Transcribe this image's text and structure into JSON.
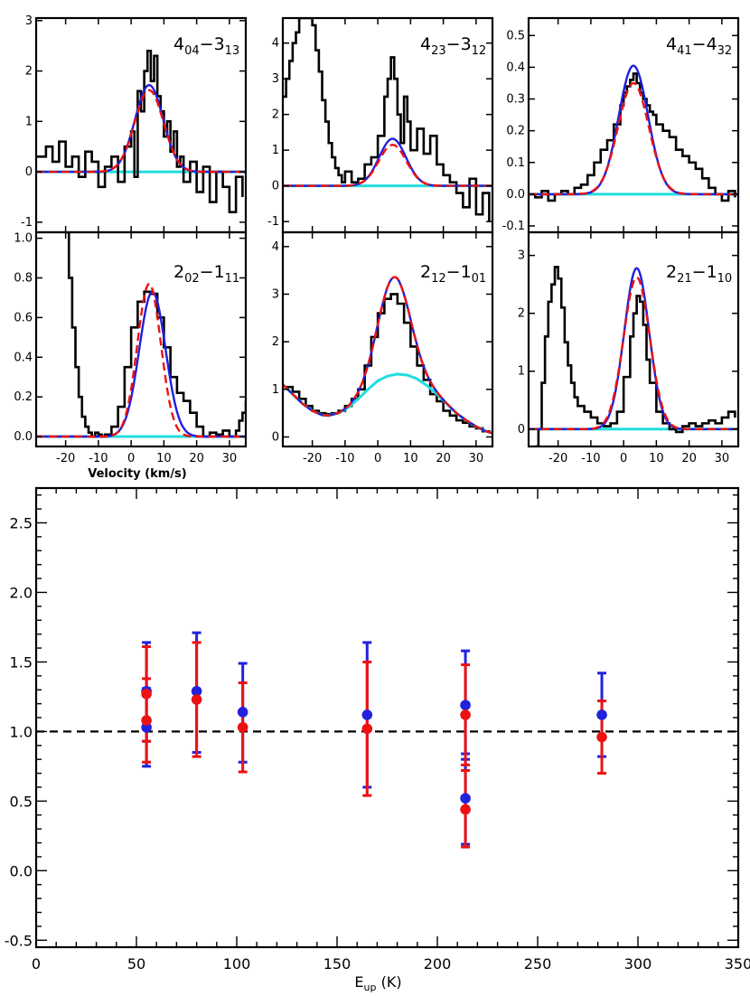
{
  "chart_data": [
    {
      "type": "line",
      "title": {
        "main_a": "4",
        "sub_a": "04",
        "dash": "−",
        "main_b": "3",
        "sub_b": "13"
      },
      "xlim": [
        -29,
        35
      ],
      "ylim": [
        -1.2,
        3.05
      ],
      "yticks": [
        "-1",
        "0",
        "1",
        "2",
        "3"
      ],
      "ytick_values": [
        -1,
        0,
        1,
        2,
        3
      ],
      "xticks": [],
      "xtick_values": [],
      "xlabel": "",
      "baseline": 0,
      "series": [
        {
          "kind": "observed",
          "color": "#000000",
          "x": [
            -29,
            -26,
            -24,
            -22,
            -20,
            -18,
            -16,
            -14,
            -12,
            -10,
            -8,
            -6,
            -4,
            -2,
            0,
            1,
            2,
            3,
            4,
            5,
            6,
            7,
            8,
            9,
            10,
            11,
            12,
            13,
            14,
            15,
            16,
            18,
            20,
            22,
            24,
            26,
            28,
            30,
            32,
            34
          ],
          "y": [
            0.3,
            0.5,
            0.2,
            0.6,
            0.1,
            0.3,
            -0.1,
            0.4,
            0.2,
            -0.3,
            0.1,
            0.3,
            -0.2,
            0.5,
            0.8,
            -0.1,
            1.6,
            1.2,
            2.0,
            2.4,
            1.8,
            2.3,
            1.5,
            1.2,
            0.7,
            1.0,
            0.4,
            0.8,
            0.1,
            0.3,
            -0.2,
            0.2,
            -0.4,
            0.1,
            -0.6,
            0.0,
            -0.3,
            -0.8,
            -0.1,
            -0.5
          ]
        },
        {
          "kind": "fit-blue",
          "color": "#1f1fdf",
          "center": 5.5,
          "amp": 1.72,
          "sigma": 4.3
        },
        {
          "kind": "fit-red",
          "color": "#ee1111",
          "center": 5.5,
          "amp": 1.62,
          "sigma": 4.4
        }
      ]
    },
    {
      "type": "line",
      "title": {
        "main_a": "4",
        "sub_a": "23",
        "dash": "−",
        "main_b": "3",
        "sub_b": "12"
      },
      "xlim": [
        -29,
        35
      ],
      "ylim": [
        -1.3,
        4.7
      ],
      "yticks": [
        "-1",
        "0",
        "1",
        "2",
        "3",
        "4"
      ],
      "ytick_values": [
        -1,
        0,
        1,
        2,
        3,
        4
      ],
      "xticks": [],
      "xtick_values": [],
      "xlabel": "",
      "baseline": 0,
      "series": [
        {
          "kind": "observed",
          "color": "#000000",
          "x": [
            -29,
            -28,
            -27,
            -26,
            -25,
            -24,
            -23,
            -22,
            -21,
            -20,
            -19,
            -18,
            -17,
            -16,
            -15,
            -14,
            -13,
            -12,
            -11,
            -10,
            -8,
            -6,
            -4,
            -2,
            0,
            2,
            3,
            4,
            5,
            6,
            7,
            8,
            9,
            10,
            12,
            14,
            16,
            18,
            20,
            22,
            24,
            26,
            28,
            30,
            32,
            34
          ],
          "y": [
            2.5,
            3.0,
            3.5,
            4.0,
            4.3,
            4.7,
            4.7,
            4.7,
            4.7,
            4.5,
            3.8,
            3.2,
            2.4,
            1.8,
            1.2,
            0.8,
            0.5,
            0.3,
            0.1,
            0.4,
            0.1,
            0.2,
            0.6,
            0.8,
            1.4,
            2.5,
            3.0,
            3.6,
            3.0,
            2.0,
            1.2,
            2.5,
            1.8,
            1.0,
            1.6,
            0.9,
            1.4,
            0.6,
            0.3,
            0.1,
            -0.2,
            -0.6,
            0.2,
            -0.8,
            -0.2,
            -1.0
          ]
        },
        {
          "kind": "fit-blue",
          "color": "#1f1fdf",
          "center": 4.5,
          "amp": 1.32,
          "sigma": 4.1
        },
        {
          "kind": "fit-red",
          "color": "#ee1111",
          "center": 4.5,
          "amp": 1.15,
          "sigma": 4.2
        }
      ]
    },
    {
      "type": "line",
      "title": {
        "main_a": "4",
        "sub_a": "41",
        "dash": "−",
        "main_b": "4",
        "sub_b": "32"
      },
      "xlim": [
        -29,
        35
      ],
      "ylim": [
        -0.12,
        0.555
      ],
      "yticks": [
        "-0.1",
        "0.0",
        "0.1",
        "0.2",
        "0.3",
        "0.4",
        "0.5"
      ],
      "ytick_values": [
        -0.1,
        0,
        0.1,
        0.2,
        0.3,
        0.4,
        0.5
      ],
      "xticks": [],
      "xtick_values": [],
      "xlabel": "",
      "baseline": 0,
      "series": [
        {
          "kind": "observed",
          "color": "#000000",
          "x": [
            -29,
            -27,
            -25,
            -23,
            -21,
            -19,
            -17,
            -15,
            -13,
            -11,
            -9,
            -7,
            -5,
            -3,
            -1,
            0,
            1,
            2,
            3,
            4,
            5,
            6,
            7,
            8,
            9,
            10,
            12,
            14,
            16,
            18,
            20,
            22,
            24,
            26,
            28,
            30,
            32,
            34
          ],
          "y": [
            0.0,
            -0.01,
            0.01,
            -0.02,
            0.0,
            0.01,
            0.0,
            0.02,
            0.03,
            0.06,
            0.1,
            0.14,
            0.17,
            0.22,
            0.28,
            0.32,
            0.34,
            0.36,
            0.38,
            0.35,
            0.32,
            0.3,
            0.28,
            0.26,
            0.25,
            0.22,
            0.2,
            0.18,
            0.14,
            0.12,
            0.1,
            0.08,
            0.05,
            0.02,
            0.0,
            -0.02,
            0.01,
            -0.01
          ]
        },
        {
          "kind": "fit-blue",
          "color": "#1f1fdf",
          "center": 3.0,
          "amp": 0.405,
          "sigma": 4.5
        },
        {
          "kind": "fit-red",
          "color": "#ee1111",
          "center": 3.0,
          "amp": 0.35,
          "sigma": 4.7
        }
      ]
    },
    {
      "type": "line",
      "title": {
        "main_a": "2",
        "sub_a": "02",
        "dash": "−",
        "main_b": "1",
        "sub_b": "11"
      },
      "xlim": [
        -29,
        35
      ],
      "ylim": [
        -0.05,
        1.03
      ],
      "yticks": [
        "0.0",
        "0.2",
        "0.4",
        "0.6",
        "0.8",
        "1.0"
      ],
      "ytick_values": [
        0,
        0.2,
        0.4,
        0.6,
        0.8,
        1.0
      ],
      "xticks": [
        "-20",
        "-10",
        "0",
        "10",
        "20",
        "30"
      ],
      "xtick_values": [
        -20,
        -10,
        0,
        10,
        20,
        30
      ],
      "xlabel": "Velocity (km/s)",
      "baseline": 0,
      "series": [
        {
          "kind": "observed",
          "color": "#000000",
          "x": [
            -20,
            -19,
            -18,
            -17,
            -16,
            -15,
            -14,
            -13,
            -12,
            -11,
            -10,
            -9,
            -8,
            -6,
            -4,
            -2,
            0,
            2,
            4,
            6,
            8,
            10,
            12,
            14,
            16,
            18,
            20,
            22,
            24,
            26,
            28,
            30,
            32,
            33,
            34,
            35
          ],
          "y": [
            1.03,
            0.8,
            0.55,
            0.35,
            0.2,
            0.1,
            0.05,
            0.02,
            0.0,
            0.02,
            0.01,
            0.0,
            0.01,
            0.05,
            0.15,
            0.35,
            0.55,
            0.68,
            0.73,
            0.72,
            0.6,
            0.45,
            0.3,
            0.22,
            0.18,
            0.12,
            0.05,
            0.0,
            0.02,
            0.01,
            0.03,
            0.0,
            0.03,
            0.08,
            0.12,
            0.18
          ]
        },
        {
          "kind": "fit-blue",
          "color": "#1f1fdf",
          "center": 6.5,
          "amp": 0.73,
          "sigma": 4.0
        },
        {
          "kind": "fit-red",
          "color": "#ee1111",
          "center": 5.5,
          "amp": 0.77,
          "sigma": 3.6
        }
      ]
    },
    {
      "type": "line",
      "title": {
        "main_a": "2",
        "sub_a": "12",
        "dash": "−",
        "main_b": "1",
        "sub_b": "01"
      },
      "xlim": [
        -29,
        35
      ],
      "ylim": [
        -0.2,
        4.3
      ],
      "yticks": [
        "0",
        "1",
        "2",
        "3",
        "4"
      ],
      "ytick_values": [
        0,
        1,
        2,
        3,
        4
      ],
      "xticks": [
        "-20",
        "-10",
        "0",
        "10",
        "20",
        "30"
      ],
      "xtick_values": [
        -20,
        -10,
        0,
        10,
        20,
        30
      ],
      "xlabel": "",
      "baseline": 0,
      "series": [
        {
          "kind": "observed",
          "color": "#000000",
          "x": [
            -28,
            -26,
            -24,
            -22,
            -20,
            -18,
            -16,
            -14,
            -12,
            -10,
            -8,
            -6,
            -4,
            -2,
            0,
            2,
            4,
            6,
            8,
            10,
            12,
            14,
            16,
            18,
            20,
            22,
            24,
            26,
            28,
            30,
            32,
            34
          ],
          "y": [
            1.05,
            0.95,
            0.8,
            0.65,
            0.55,
            0.5,
            0.48,
            0.5,
            0.55,
            0.65,
            0.8,
            1.0,
            1.5,
            2.1,
            2.6,
            2.9,
            3.0,
            2.8,
            2.4,
            1.9,
            1.5,
            1.2,
            0.9,
            0.75,
            0.55,
            0.45,
            0.35,
            0.3,
            0.22,
            0.18,
            0.12,
            0.08
          ]
        },
        {
          "kind": "fit-blue",
          "color": "#1f1fdf",
          "center": 5.0,
          "amp": 2.05,
          "sigma": 4.8,
          "on_baseline": true
        },
        {
          "kind": "fit-red",
          "color": "#ee1111",
          "center": 5.0,
          "amp": 2.05,
          "sigma": 4.8,
          "on_baseline": true
        },
        {
          "kind": "baseline-cyan",
          "color": "#22dddd",
          "x": [
            -29,
            -26,
            -23,
            -20,
            -17,
            -15,
            -12,
            -9,
            -6,
            -3,
            0,
            3,
            6,
            9,
            12,
            15,
            18,
            21,
            24,
            27,
            30,
            33,
            35
          ],
          "y": [
            1.1,
            0.9,
            0.7,
            0.55,
            0.46,
            0.45,
            0.5,
            0.62,
            0.8,
            1.0,
            1.18,
            1.28,
            1.32,
            1.3,
            1.22,
            1.08,
            0.9,
            0.7,
            0.5,
            0.35,
            0.22,
            0.12,
            0.08
          ]
        }
      ]
    },
    {
      "type": "line",
      "title": {
        "main_a": "2",
        "sub_a": "21",
        "dash": "−",
        "main_b": "1",
        "sub_b": "10"
      },
      "xlim": [
        -29,
        35
      ],
      "ylim": [
        -0.3,
        3.4
      ],
      "yticks": [
        "0",
        "1",
        "2",
        "3"
      ],
      "ytick_values": [
        0,
        1,
        2,
        3
      ],
      "xticks": [
        "-20",
        "-10",
        "0",
        "10",
        "20",
        "30"
      ],
      "xtick_values": [
        -20,
        -10,
        0,
        10,
        20,
        30
      ],
      "xlabel": "",
      "baseline": 0,
      "series": [
        {
          "kind": "observed",
          "color": "#000000",
          "x": [
            -27,
            -26,
            -25,
            -24,
            -23,
            -22,
            -21,
            -20,
            -19,
            -18,
            -17,
            -16,
            -15,
            -14,
            -12,
            -10,
            -8,
            -6,
            -4,
            -2,
            0,
            2,
            3,
            4,
            5,
            6,
            7,
            8,
            10,
            12,
            14,
            16,
            18,
            20,
            22,
            24,
            26,
            28,
            30,
            32,
            34
          ],
          "y": [
            -0.3,
            0.0,
            0.8,
            1.6,
            2.2,
            2.5,
            2.8,
            2.6,
            2.1,
            1.5,
            1.1,
            0.8,
            0.55,
            0.4,
            0.3,
            0.2,
            0.1,
            0.05,
            0.1,
            0.3,
            0.9,
            1.6,
            2.0,
            2.3,
            2.2,
            1.8,
            1.2,
            0.8,
            0.3,
            0.1,
            0.0,
            -0.05,
            0.05,
            0.1,
            0.05,
            0.1,
            0.15,
            0.1,
            0.2,
            0.3,
            0.2
          ]
        },
        {
          "kind": "fit-blue",
          "color": "#1f1fdf",
          "center": 4.0,
          "amp": 2.78,
          "sigma": 3.8
        },
        {
          "kind": "fit-red",
          "color": "#ee1111",
          "center": 4.0,
          "amp": 2.62,
          "sigma": 4.0
        }
      ]
    },
    {
      "type": "scatter",
      "title": "",
      "xlabel": {
        "main": "E",
        "sub": "up",
        "rest": " (K)"
      },
      "ylabel": "",
      "xlim": [
        0,
        350
      ],
      "ylim": [
        -0.55,
        2.75
      ],
      "xticks": [
        "0",
        "50",
        "100",
        "150",
        "200",
        "250",
        "300",
        "350"
      ],
      "xtick_values": [
        0,
        50,
        100,
        150,
        200,
        250,
        300,
        350
      ],
      "yticks": [
        "-0.5",
        "0.0",
        "0.5",
        "1.0",
        "1.5",
        "2.0",
        "2.5"
      ],
      "ytick_values": [
        -0.5,
        0,
        0.5,
        1.0,
        1.5,
        2.0,
        2.5
      ],
      "reference_line": 1.0,
      "series": [
        {
          "name": "",
          "color": "#2222dd",
          "points": [
            {
              "x": 55,
              "y": 1.29,
              "lo": 0.93,
              "hi": 1.64
            },
            {
              "x": 55,
              "y": 1.03,
              "lo": 0.75,
              "hi": 1.31
            },
            {
              "x": 80,
              "y": 1.29,
              "lo": 0.85,
              "hi": 1.71
            },
            {
              "x": 103,
              "y": 1.14,
              "lo": 0.78,
              "hi": 1.49
            },
            {
              "x": 165,
              "y": 1.12,
              "lo": 0.6,
              "hi": 1.64
            },
            {
              "x": 214,
              "y": 1.19,
              "lo": 0.84,
              "hi": 1.58
            },
            {
              "x": 214,
              "y": 0.52,
              "lo": 0.19,
              "hi": 0.8
            },
            {
              "x": 282,
              "y": 1.12,
              "lo": 0.82,
              "hi": 1.42
            }
          ]
        },
        {
          "name": "",
          "color": "#ee1111",
          "points": [
            {
              "x": 55,
              "y": 1.27,
              "lo": 0.93,
              "hi": 1.61
            },
            {
              "x": 55,
              "y": 1.08,
              "lo": 0.78,
              "hi": 1.38
            },
            {
              "x": 80,
              "y": 1.23,
              "lo": 0.82,
              "hi": 1.64
            },
            {
              "x": 103,
              "y": 1.03,
              "lo": 0.71,
              "hi": 1.35
            },
            {
              "x": 165,
              "y": 1.02,
              "lo": 0.54,
              "hi": 1.5
            },
            {
              "x": 214,
              "y": 1.12,
              "lo": 0.76,
              "hi": 1.48
            },
            {
              "x": 214,
              "y": 0.44,
              "lo": 0.17,
              "hi": 0.72
            },
            {
              "x": 282,
              "y": 0.96,
              "lo": 0.7,
              "hi": 1.22
            }
          ]
        }
      ]
    }
  ]
}
